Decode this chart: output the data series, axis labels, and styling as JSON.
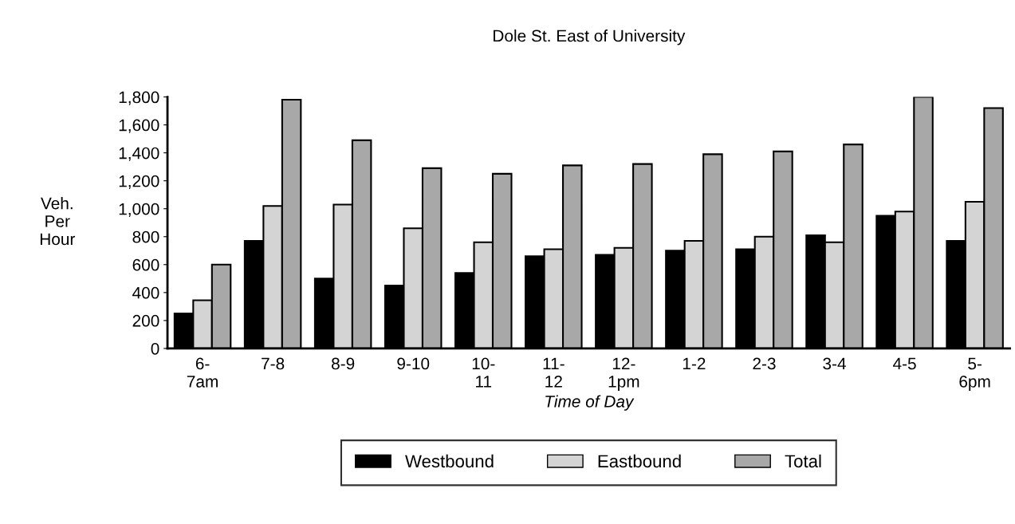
{
  "chart_data": {
    "type": "bar",
    "title": "Dole St. East of University",
    "xlabel": "Time of Day",
    "ylabel": "Veh.\nPer\nHour",
    "categories": [
      "6-\n7am",
      "7-8",
      "8-9",
      "9-10",
      "10-\n11",
      "11-\n12",
      "12-\n1pm",
      "1-2",
      "2-3",
      "3-4",
      "4-5",
      "5-\n6pm"
    ],
    "series": [
      {
        "name": "Westbound",
        "color": "#000000",
        "values": [
          250,
          770,
          500,
          450,
          540,
          660,
          670,
          700,
          710,
          810,
          950,
          770
        ]
      },
      {
        "name": "Eastbound",
        "color": "#d4d4d4",
        "values": [
          345,
          1020,
          1030,
          860,
          760,
          710,
          720,
          770,
          800,
          760,
          980,
          1050
        ]
      },
      {
        "name": "Total",
        "color": "#a8a8a8",
        "values": [
          600,
          1780,
          1490,
          1290,
          1250,
          1310,
          1320,
          1390,
          1410,
          1460,
          1800,
          1720
        ]
      }
    ],
    "ylim": [
      0,
      1800
    ],
    "yticks": [
      0,
      200,
      400,
      600,
      800,
      {
        "value": 1000,
        "label": "1,000"
      },
      {
        "value": 1200,
        "label": "1,200"
      },
      {
        "value": 1400,
        "label": "1,400"
      },
      {
        "value": 1600,
        "label": "1,600"
      },
      {
        "value": 1800,
        "label": "1,800"
      }
    ],
    "grid": false,
    "legend": "bottom"
  }
}
